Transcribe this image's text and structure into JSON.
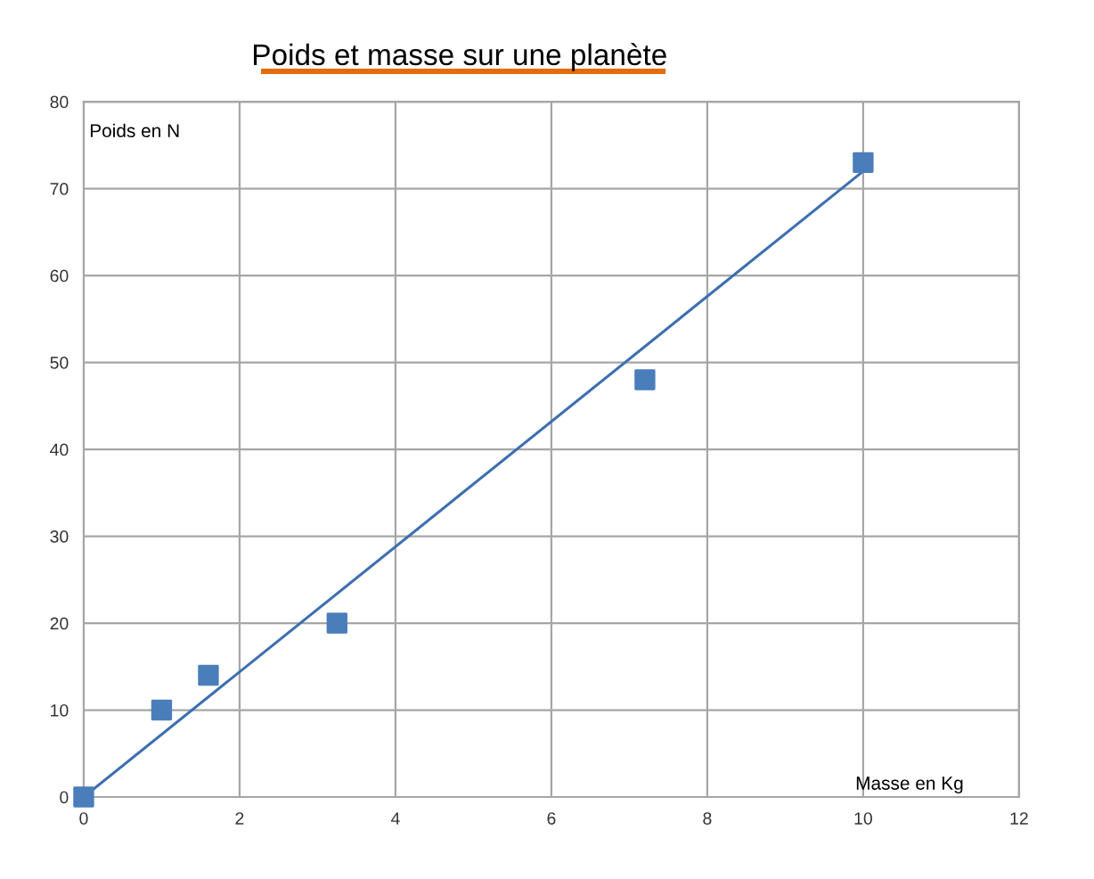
{
  "chart_data": {
    "type": "scatter",
    "title": "Poids et masse sur une planète",
    "xlabel": "Masse en Kg",
    "ylabel": "Poids en N",
    "series": [
      {
        "color": "#4a7ebb",
        "x": [
          0,
          1,
          1.6,
          3.25,
          7.2,
          10
        ],
        "values": [
          0,
          10,
          14,
          20,
          48,
          73
        ],
        "marker": "square"
      },
      {
        "type": "line",
        "color": "#3d6fb0",
        "x": [
          0,
          10
        ],
        "values": [
          0,
          72
        ],
        "marker": "none",
        "line_style": "solid"
      }
    ],
    "xlim": [
      0,
      12
    ],
    "xticks": [
      0,
      2,
      4,
      6,
      8,
      10,
      12
    ],
    "ylim": [
      0,
      80
    ],
    "yticks": [
      0,
      10,
      20,
      30,
      40,
      50,
      60,
      70,
      80
    ],
    "grid": true,
    "legend": false
  }
}
